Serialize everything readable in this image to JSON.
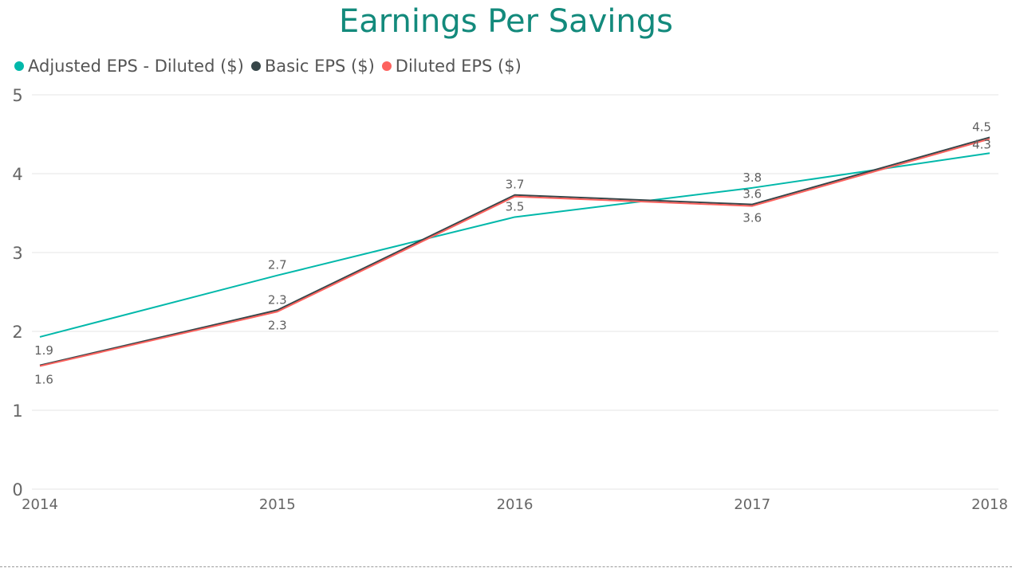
{
  "colors": {
    "title": "#138A7C",
    "axis_text": "#666666",
    "grid": "#E6E6E6",
    "label": "#606060"
  },
  "chart_data": {
    "type": "line",
    "title": "Earnings Per Savings",
    "xlabel": "",
    "ylabel": "",
    "x": [
      "2014",
      "2015",
      "2016",
      "2017",
      "2018"
    ],
    "ylim": [
      0,
      5
    ],
    "yticks": [
      "0",
      "1",
      "2",
      "3",
      "4",
      "5"
    ],
    "grid": true,
    "legend_position": "top-left",
    "series": [
      {
        "name": "Adjusted EPS - Diluted ($)",
        "color": "#01B8AA",
        "values": [
          1.93,
          2.71,
          3.45,
          3.82,
          4.26
        ],
        "labels": [
          "1.9",
          "2.7",
          "3.5",
          "3.8",
          "4.3"
        ]
      },
      {
        "name": "Basic EPS ($)",
        "color": "#374649",
        "values": [
          1.57,
          2.27,
          3.73,
          3.61,
          4.46
        ],
        "labels": [
          "",
          "2.3",
          "3.7",
          "3.6",
          "4.5"
        ]
      },
      {
        "name": "Diluted EPS ($)",
        "color": "#FD625E",
        "values": [
          1.56,
          2.25,
          3.71,
          3.59,
          4.44
        ],
        "labels": [
          "1.6",
          "2.3",
          "",
          "3.6",
          ""
        ]
      }
    ]
  }
}
